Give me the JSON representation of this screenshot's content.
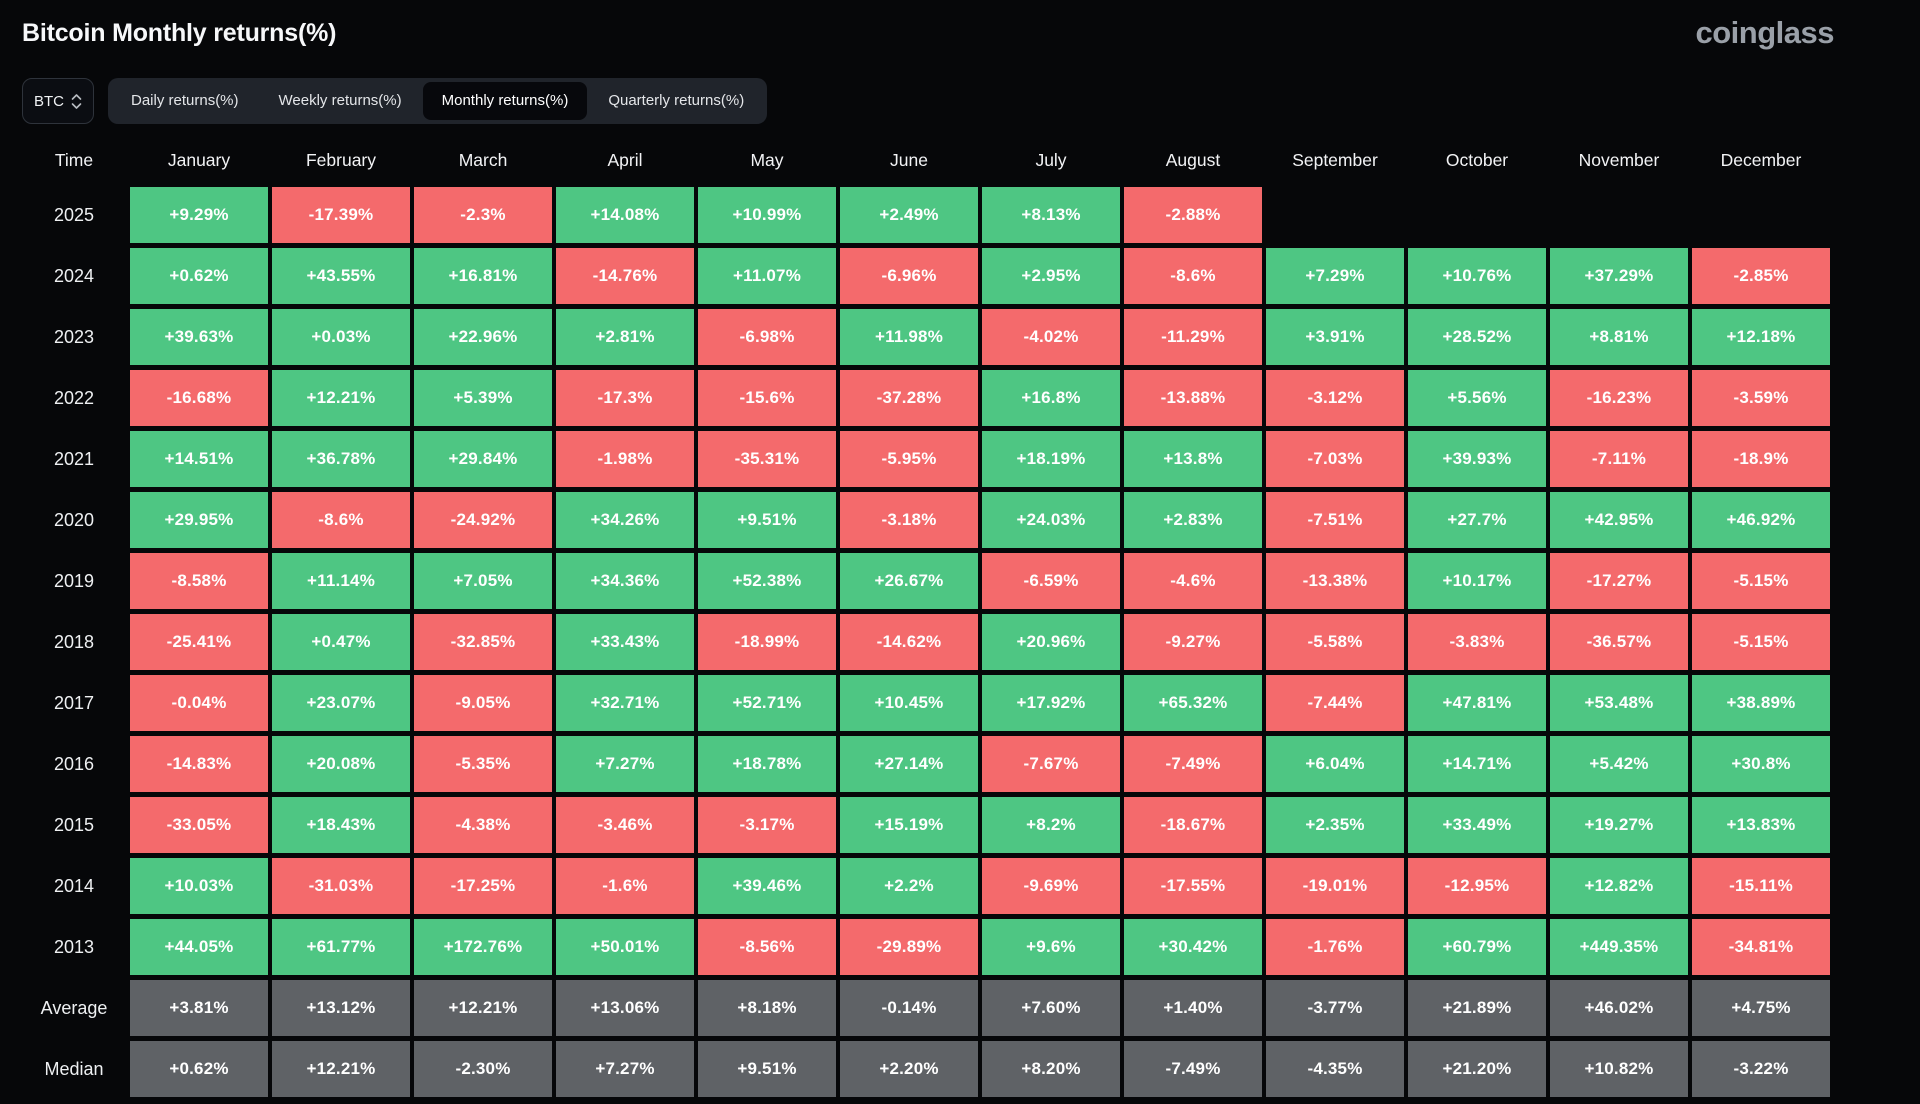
{
  "header": {
    "title": "Bitcoin Monthly returns(%)",
    "logo": "coinglass"
  },
  "controls": {
    "symbol": "BTC",
    "tabs": [
      {
        "label": "Daily returns(%)",
        "selected": false
      },
      {
        "label": "Weekly returns(%)",
        "selected": false
      },
      {
        "label": "Monthly returns(%)",
        "selected": true
      },
      {
        "label": "Quarterly returns(%)",
        "selected": false
      }
    ]
  },
  "chart_data": {
    "type": "heatmap",
    "title": "Bitcoin Monthly returns(%)",
    "unit": "%",
    "columns": [
      "Time",
      "January",
      "February",
      "March",
      "April",
      "May",
      "June",
      "July",
      "August",
      "September",
      "October",
      "November",
      "December"
    ],
    "rows": [
      {
        "label": "2025",
        "values": [
          "+9.29%",
          "-17.39%",
          "-2.3%",
          "+14.08%",
          "+10.99%",
          "+2.49%",
          "+8.13%",
          "-2.88%",
          null,
          null,
          null,
          null
        ]
      },
      {
        "label": "2024",
        "values": [
          "+0.62%",
          "+43.55%",
          "+16.81%",
          "-14.76%",
          "+11.07%",
          "-6.96%",
          "+2.95%",
          "-8.6%",
          "+7.29%",
          "+10.76%",
          "+37.29%",
          "-2.85%"
        ]
      },
      {
        "label": "2023",
        "values": [
          "+39.63%",
          "+0.03%",
          "+22.96%",
          "+2.81%",
          "-6.98%",
          "+11.98%",
          "-4.02%",
          "-11.29%",
          "+3.91%",
          "+28.52%",
          "+8.81%",
          "+12.18%"
        ]
      },
      {
        "label": "2022",
        "values": [
          "-16.68%",
          "+12.21%",
          "+5.39%",
          "-17.3%",
          "-15.6%",
          "-37.28%",
          "+16.8%",
          "-13.88%",
          "-3.12%",
          "+5.56%",
          "-16.23%",
          "-3.59%"
        ]
      },
      {
        "label": "2021",
        "values": [
          "+14.51%",
          "+36.78%",
          "+29.84%",
          "-1.98%",
          "-35.31%",
          "-5.95%",
          "+18.19%",
          "+13.8%",
          "-7.03%",
          "+39.93%",
          "-7.11%",
          "-18.9%"
        ]
      },
      {
        "label": "2020",
        "values": [
          "+29.95%",
          "-8.6%",
          "-24.92%",
          "+34.26%",
          "+9.51%",
          "-3.18%",
          "+24.03%",
          "+2.83%",
          "-7.51%",
          "+27.7%",
          "+42.95%",
          "+46.92%"
        ]
      },
      {
        "label": "2019",
        "values": [
          "-8.58%",
          "+11.14%",
          "+7.05%",
          "+34.36%",
          "+52.38%",
          "+26.67%",
          "-6.59%",
          "-4.6%",
          "-13.38%",
          "+10.17%",
          "-17.27%",
          "-5.15%"
        ]
      },
      {
        "label": "2018",
        "values": [
          "-25.41%",
          "+0.47%",
          "-32.85%",
          "+33.43%",
          "-18.99%",
          "-14.62%",
          "+20.96%",
          "-9.27%",
          "-5.58%",
          "-3.83%",
          "-36.57%",
          "-5.15%"
        ]
      },
      {
        "label": "2017",
        "values": [
          "-0.04%",
          "+23.07%",
          "-9.05%",
          "+32.71%",
          "+52.71%",
          "+10.45%",
          "+17.92%",
          "+65.32%",
          "-7.44%",
          "+47.81%",
          "+53.48%",
          "+38.89%"
        ]
      },
      {
        "label": "2016",
        "values": [
          "-14.83%",
          "+20.08%",
          "-5.35%",
          "+7.27%",
          "+18.78%",
          "+27.14%",
          "-7.67%",
          "-7.49%",
          "+6.04%",
          "+14.71%",
          "+5.42%",
          "+30.8%"
        ]
      },
      {
        "label": "2015",
        "values": [
          "-33.05%",
          "+18.43%",
          "-4.38%",
          "-3.46%",
          "-3.17%",
          "+15.19%",
          "+8.2%",
          "-18.67%",
          "+2.35%",
          "+33.49%",
          "+19.27%",
          "+13.83%"
        ]
      },
      {
        "label": "2014",
        "values": [
          "+10.03%",
          "-31.03%",
          "-17.25%",
          "-1.6%",
          "+39.46%",
          "+2.2%",
          "-9.69%",
          "-17.55%",
          "-19.01%",
          "-12.95%",
          "+12.82%",
          "-15.11%"
        ]
      },
      {
        "label": "2013",
        "values": [
          "+44.05%",
          "+61.77%",
          "+172.76%",
          "+50.01%",
          "-8.56%",
          "-29.89%",
          "+9.6%",
          "+30.42%",
          "-1.76%",
          "+60.79%",
          "+449.35%",
          "-34.81%"
        ]
      },
      {
        "label": "Average",
        "style": "aggregate",
        "values": [
          "+3.81%",
          "+13.12%",
          "+12.21%",
          "+13.06%",
          "+8.18%",
          "-0.14%",
          "+7.60%",
          "+1.40%",
          "-3.77%",
          "+21.89%",
          "+46.02%",
          "+4.75%"
        ]
      },
      {
        "label": "Median",
        "style": "aggregate",
        "values": [
          "+0.62%",
          "+12.21%",
          "-2.30%",
          "+7.27%",
          "+9.51%",
          "+2.20%",
          "+8.20%",
          "-7.49%",
          "-4.35%",
          "+21.20%",
          "+10.82%",
          "-3.22%"
        ]
      }
    ],
    "colors": {
      "positive": "#4ec683",
      "negative": "#f46a6c",
      "aggregate": "#5f6266",
      "background": "#060709"
    }
  }
}
